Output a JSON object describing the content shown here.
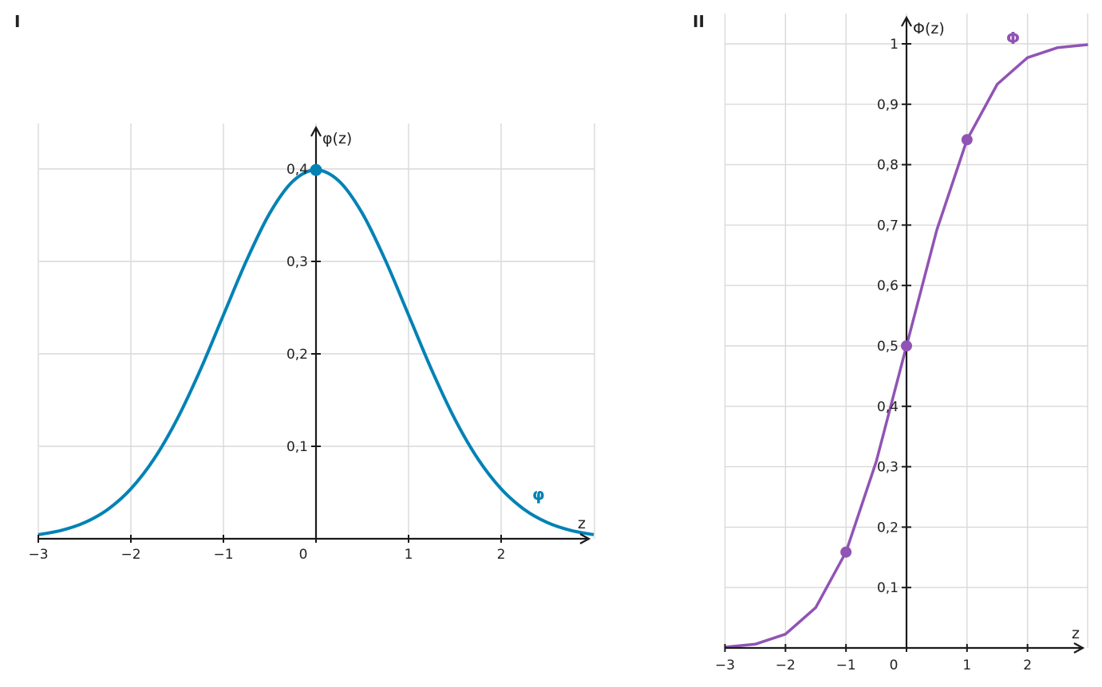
{
  "chart_data": [
    {
      "panel": "I",
      "type": "line",
      "title": "",
      "xlabel": "z",
      "ylabel": "φ(z)",
      "series_label": "φ",
      "color": "#0082b5",
      "xlim": [
        -3,
        3
      ],
      "ylim": [
        0,
        0.4
      ],
      "x_ticks": [
        -3,
        -2,
        -1,
        0,
        1,
        2
      ],
      "x_tick_labels": [
        "−3",
        "−2",
        "−1",
        "0",
        "1",
        "2"
      ],
      "y_ticks": [
        0.1,
        0.2,
        0.3,
        0.4
      ],
      "y_tick_labels": [
        "0,1",
        "0,2",
        "0,3",
        "0,4"
      ],
      "series": [
        {
          "x": [
            -3,
            -2.75,
            -2.5,
            -2.25,
            -2,
            -1.75,
            -1.5,
            -1.25,
            -1,
            -0.75,
            -0.5,
            -0.25,
            0,
            0.25,
            0.5,
            0.75,
            1,
            1.25,
            1.5,
            1.75,
            2,
            2.25,
            2.5,
            2.75,
            3
          ],
          "values": [
            0.0044,
            0.0091,
            0.0175,
            0.0317,
            0.054,
            0.0863,
            0.1295,
            0.1826,
            0.242,
            0.3011,
            0.3521,
            0.3867,
            0.3989,
            0.3867,
            0.3521,
            0.3011,
            0.242,
            0.1826,
            0.1295,
            0.0863,
            0.054,
            0.0317,
            0.0175,
            0.0091,
            0.0044
          ]
        }
      ],
      "markers": [
        {
          "x": 0,
          "y": 0.3989
        }
      ],
      "grid": true
    },
    {
      "panel": "II",
      "type": "line",
      "title": "",
      "xlabel": "z",
      "ylabel": "Φ(z)",
      "series_label": "Φ",
      "color": "#9054b4",
      "xlim": [
        -3,
        3
      ],
      "ylim": [
        0,
        1
      ],
      "x_ticks": [
        -3,
        -2,
        -1,
        0,
        1,
        2
      ],
      "x_tick_labels": [
        "−3",
        "−2",
        "−1",
        "0",
        "1",
        "2"
      ],
      "y_ticks": [
        0.1,
        0.2,
        0.3,
        0.4,
        0.5,
        0.6,
        0.7,
        0.8,
        0.9,
        1
      ],
      "y_tick_labels": [
        "0,1",
        "0,2",
        "0,3",
        "0,4",
        "0,5",
        "0,6",
        "0,7",
        "0,8",
        "0,9",
        "1"
      ],
      "series": [
        {
          "x": [
            -3,
            -2.5,
            -2,
            -1.5,
            -1,
            -0.5,
            0,
            0.5,
            1,
            1.5,
            2,
            2.5,
            3
          ],
          "values": [
            0.0013,
            0.0062,
            0.0228,
            0.0668,
            0.1587,
            0.3085,
            0.5,
            0.6915,
            0.8413,
            0.9332,
            0.9772,
            0.9938,
            0.9987
          ]
        }
      ],
      "markers": [
        {
          "x": -1,
          "y": 0.1587
        },
        {
          "x": 0,
          "y": 0.5
        },
        {
          "x": 1,
          "y": 0.8413
        }
      ],
      "grid": true
    }
  ]
}
